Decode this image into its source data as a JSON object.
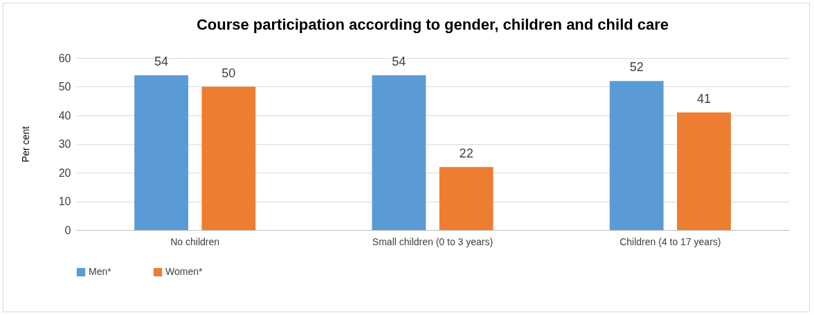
{
  "chart_data": {
    "type": "bar",
    "title": "Course participation according to gender, children and child care",
    "ylabel": "Per cent",
    "categories": [
      "No children",
      "Small children (0 to 3 years)",
      "Children (4 to 17 years)"
    ],
    "series": [
      {
        "name": "Men*",
        "color": "#5b9bd5",
        "values": [
          54,
          54,
          52
        ]
      },
      {
        "name": "Women*",
        "color": "#ed7d31",
        "values": [
          50,
          22,
          41
        ]
      }
    ],
    "ylim": [
      0,
      60
    ],
    "yticks": [
      0,
      10,
      20,
      30,
      40,
      50,
      60
    ],
    "grid": "y",
    "legend": "bottom",
    "data_labels": true
  }
}
